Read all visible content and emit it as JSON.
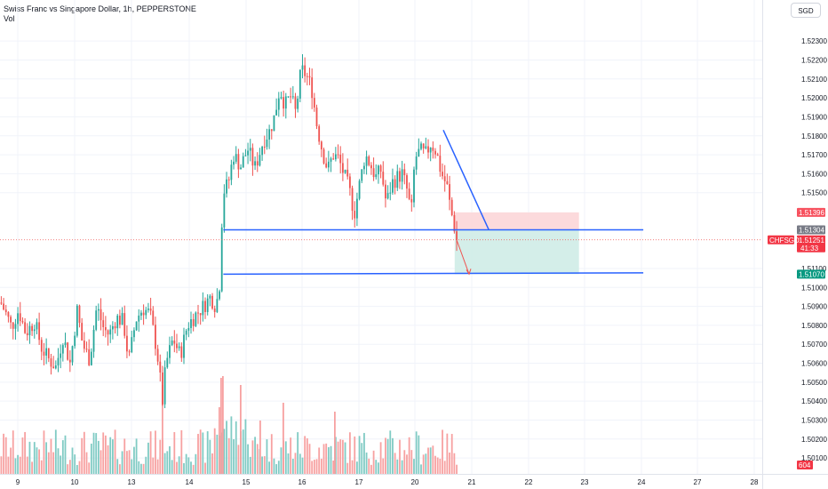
{
  "header": {
    "title": "Swiss Franc vs Singapore Dollar, 1h, PEPPERSTONE",
    "volume_label": "Vol",
    "currency_button": "SGD"
  },
  "colors": {
    "up": "#26a69a",
    "down": "#ef5350",
    "vol_up": "#80cbc4",
    "vol_down": "#f7a1a1",
    "trendline": "#2962ff",
    "grid": "#f0f3fa",
    "stop_zone": "#fbd4d6",
    "target_zone": "#cdebe5",
    "price_line": "#ef5350"
  },
  "chart_data": {
    "type": "candlestick",
    "symbol": "CHFSGD",
    "timeframe": "1h",
    "y_axis": {
      "range": [
        1.5003,
        1.5239
      ],
      "ticks": [
        "1.52300",
        "1.52200",
        "1.52100",
        "1.52000",
        "1.51900",
        "1.51800",
        "1.51700",
        "1.51600",
        "1.51500",
        "1.51100",
        "1.51000",
        "1.50900",
        "1.50800",
        "1.50700",
        "1.50600",
        "1.50500",
        "1.50400",
        "1.50300",
        "1.50200",
        "1.50100"
      ]
    },
    "x_axis": {
      "labels": [
        "9",
        "10",
        "13",
        "14",
        "15",
        "16",
        "17",
        "20",
        "21",
        "22",
        "23",
        "24",
        "27",
        "28"
      ]
    },
    "price_labels": {
      "stop": "1.51396",
      "entry": "1.51304",
      "current_symbol": "CHFSGD",
      "current_price": "1.51251",
      "countdown": "41:33",
      "target": "1.51070",
      "volume_value": "604"
    },
    "horizontal_lines": [
      1.51304,
      1.5107
    ],
    "trendline": {
      "from": [
        20.5,
        1.5183
      ],
      "to": [
        21.3,
        1.51304
      ]
    },
    "position": {
      "entry": 1.51304,
      "stop": 1.51396,
      "target": 1.5107,
      "start": 20.7,
      "end": 22.9
    },
    "key_levels": {
      "open": 1.5092,
      "low": 1.50327,
      "high": 1.52229,
      "last": 1.51251
    }
  }
}
